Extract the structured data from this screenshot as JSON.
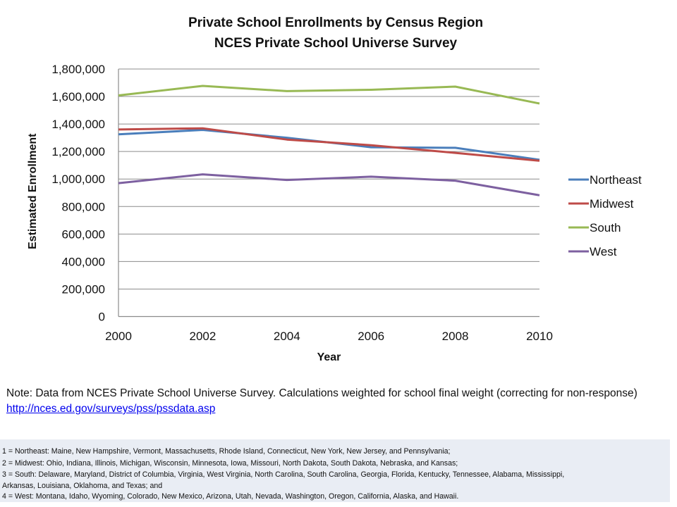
{
  "chart_data": {
    "type": "line",
    "title": "Private School Enrollments by Census Region",
    "subtitle": "NCES Private School Universe Survey",
    "xlabel": "Year",
    "ylabel": "Estimated Enrollment",
    "x": [
      2000,
      2002,
      2004,
      2006,
      2008,
      2010
    ],
    "x_tick_labels": [
      "2000",
      "2002",
      "2004",
      "2006",
      "2008",
      "2010"
    ],
    "ylim": [
      0,
      1800000
    ],
    "y_ticks": [
      0,
      200000,
      400000,
      600000,
      800000,
      1000000,
      1200000,
      1400000,
      1600000,
      1800000
    ],
    "y_tick_labels": [
      "0",
      "200,000",
      "400,000",
      "600,000",
      "800,000",
      "1,000,000",
      "1,200,000",
      "1,400,000",
      "1,600,000",
      "1,800,000"
    ],
    "grid": "horizontal",
    "legend_position": "right",
    "series": [
      {
        "name": "Northeast",
        "color": "#4a7ebb",
        "values": [
          1325000,
          1357000,
          1300000,
          1231000,
          1227000,
          1140000
        ]
      },
      {
        "name": "Midwest",
        "color": "#be4b48",
        "values": [
          1360000,
          1369000,
          1287000,
          1246000,
          1190000,
          1133000
        ]
      },
      {
        "name": "South",
        "color": "#98b954",
        "values": [
          1608000,
          1677000,
          1639000,
          1649000,
          1672000,
          1549000
        ]
      },
      {
        "name": "West",
        "color": "#7d60a0",
        "values": [
          970000,
          1034000,
          993000,
          1017000,
          988000,
          882000
        ]
      }
    ]
  },
  "note": {
    "text": "Note: Data from NCES Private School Universe Survey. Calculations weighted for school final weight (correcting for non-response) ",
    "link_text": "http://nces.ed.gov/surveys/pss/pssdata.asp"
  },
  "footnotes": [
    "1 = Northeast:  Maine, New  Hampshire, Vermont,  Massachusetts, Rhode Island, Connecticut, New York,  New Jersey,  and Pennsylvania;",
    "2 = Midwest:  Ohio, Indiana, Illinois, Michigan, Wisconsin, Minnesota, Iowa, Missouri, North Dakota, South Dakota, Nebraska, and Kansas;",
    "3 = South:  Delaware, Maryland, District of Columbia, Virginia, West Virginia, North Carolina, South Carolina, Georgia, Florida, Kentucky, Tennessee,  Alabama, Mississippi,",
    "Arkansas, Louisiana, Oklahoma, and Texas; and",
    "4 = West:  Montana,  Idaho, Wyoming, Colorado, New Mexico, Arizona, Utah, Nevada,  Washington, Oregon, California, Alaska, and Hawaii."
  ]
}
